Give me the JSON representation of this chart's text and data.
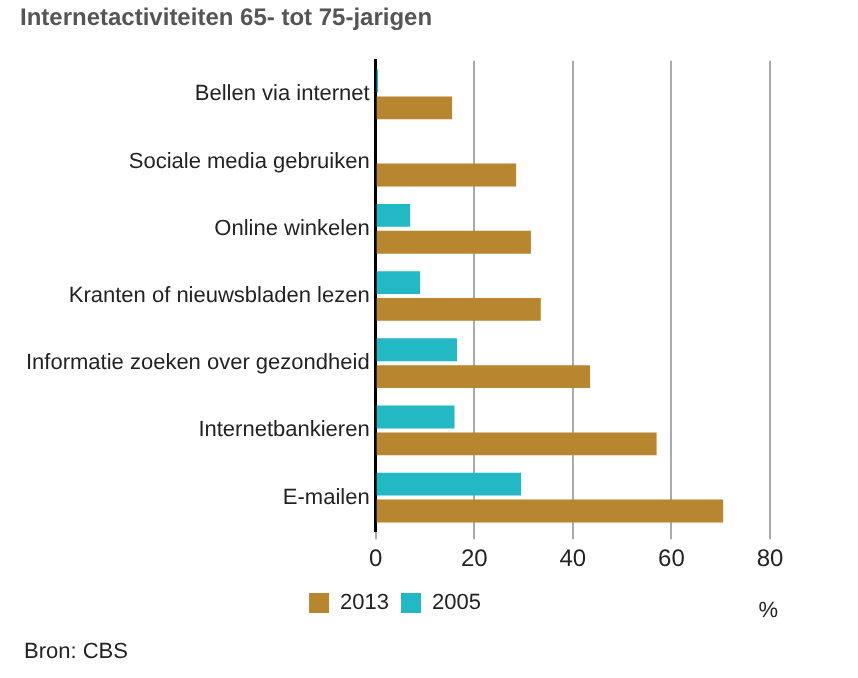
{
  "chart_data": {
    "type": "bar",
    "orientation": "horizontal",
    "title": "Internetactiviteiten 65- tot 75-jarigen",
    "xlabel": "%",
    "annotations": [
      "Bron: CBS"
    ],
    "categories": [
      "Bellen via internet",
      "Sociale media gebruiken",
      "Online winkelen",
      "Kranten of nieuwsbladen lezen",
      "Informatie zoeken over gezondheid",
      "Internetbankieren",
      "E-mailen"
    ],
    "series": [
      {
        "name": "2013",
        "color": "#b8862e",
        "values": [
          15.5,
          28.5,
          31.5,
          33.5,
          43.5,
          57,
          70.5
        ]
      },
      {
        "name": "2005",
        "color": "#22b8c4",
        "values": [
          0.5,
          null,
          7,
          9,
          16.5,
          16,
          29.5
        ]
      }
    ],
    "xlim": [
      0,
      80
    ],
    "xticks": [
      0,
      20,
      40,
      60,
      80
    ],
    "grid": "x",
    "legend": "bottom"
  }
}
